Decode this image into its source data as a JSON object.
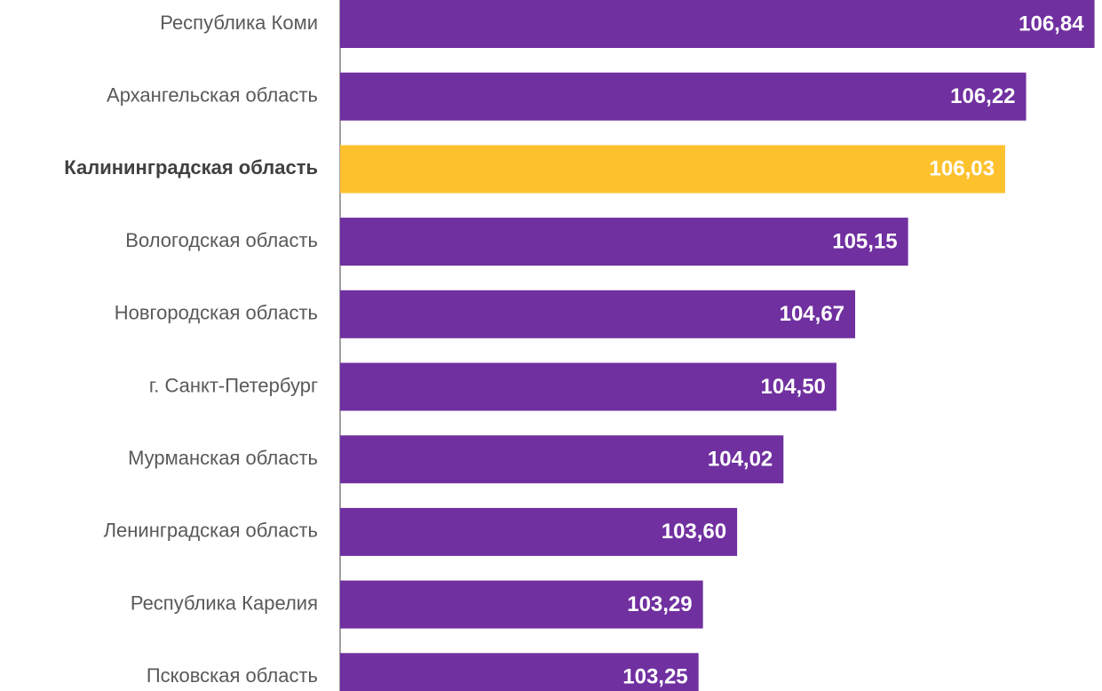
{
  "chart_data": {
    "type": "barh",
    "categories": [
      "Республика Коми",
      "Архангельская область",
      "Калининградская область",
      "Вологодская область",
      "Новгородская область",
      "г. Санкт-Петербург",
      "Мурманская область",
      "Ленинградская область",
      "Республика Карелия",
      "Псковская область"
    ],
    "values": [
      106.84,
      106.22,
      106.03,
      105.15,
      104.67,
      104.5,
      104.02,
      103.6,
      103.29,
      103.25
    ],
    "value_labels": [
      "106,84",
      "106,22",
      "106,03",
      "105,15",
      "104,67",
      "104,50",
      "104,02",
      "103,60",
      "103,29",
      "103,25"
    ],
    "color": "#7030a0",
    "colors": [
      "#7030a0",
      "#7030a0",
      "#fec12e",
      "#7030a0",
      "#7030a0",
      "#7030a0",
      "#7030a0",
      "#7030a0",
      "#7030a0",
      "#7030a0"
    ],
    "xlim": [
      100,
      106.9
    ]
  }
}
